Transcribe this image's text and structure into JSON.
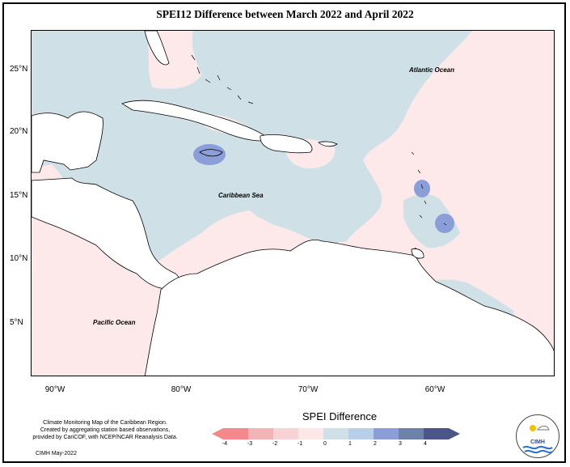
{
  "title": "SPEI12 Difference between March 2022 and April 2022",
  "map_labels": {
    "atlantic": "Atlantic Ocean",
    "caribbean": "Caribbean Sea",
    "pacific": "Pacific Ocean"
  },
  "lat_ticks": [
    "25°N",
    "20°N",
    "15°N",
    "10°N",
    "5°N"
  ],
  "lon_ticks": [
    "90°W",
    "80°W",
    "70°W",
    "60°W"
  ],
  "legend": {
    "title": "SPEI Difference",
    "ticks": [
      "-4",
      "-3",
      "-2",
      "-1",
      "0",
      "1",
      "2",
      "3",
      "4"
    ],
    "colors": [
      "#f4888c",
      "#f3b4b8",
      "#f8d3d6",
      "#fde8e8",
      "#cfe1e7",
      "#b7cfe8",
      "#8b9ed8",
      "#6d82a8",
      "#4b5688"
    ]
  },
  "credit": {
    "line1": "Climate Monitoring Map of the Caribbean Region.",
    "line2": "Created by aggregating station based observations,",
    "line3": "provided by CariCOF, with NCEP/NCAR Reanalysis Data.",
    "line4": "CIMH May-2022"
  },
  "logo_text": "CIMH"
}
